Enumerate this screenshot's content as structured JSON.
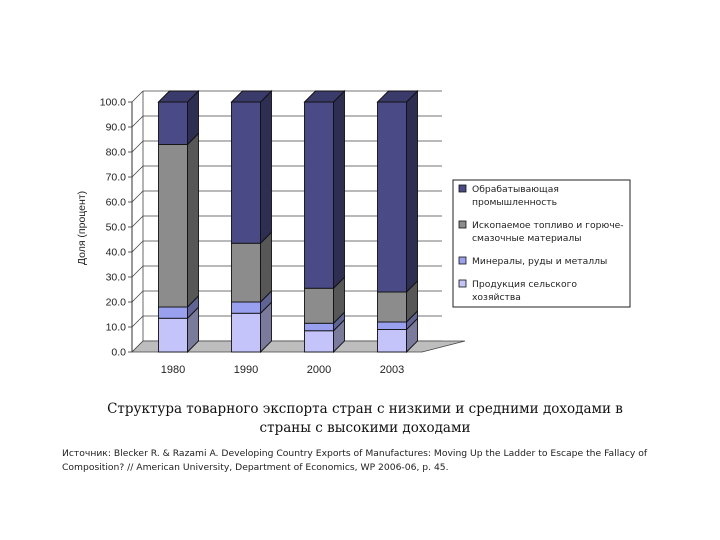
{
  "chart_data": {
    "type": "bar",
    "stacked": true,
    "three_d": true,
    "categories": [
      "1980",
      "1990",
      "2000",
      "2003"
    ],
    "ylabel": "Доля (процент)",
    "ylim": [
      0,
      100
    ],
    "y_ticks": [
      "0.0",
      "10.0",
      "20.0",
      "30.0",
      "40.0",
      "50.0",
      "60.0",
      "70.0",
      "80.0",
      "90.0",
      "100.0"
    ],
    "grid": true,
    "legend_position": "right",
    "series": [
      {
        "name": "Продукция сельского хозяйства",
        "legend_lines": [
          "Продукция сельского",
          "хозяйства"
        ],
        "color": "#c4c4fb",
        "values": [
          13.5,
          15.5,
          8.5,
          9.0
        ]
      },
      {
        "name": "Минералы, руды и металлы",
        "legend_lines": [
          "Минералы, руды и металлы"
        ],
        "color": "#9aa0f0",
        "values": [
          4.5,
          4.5,
          3.0,
          3.0
        ]
      },
      {
        "name": "Ископаемое топливо и горюче-смазочные материалы",
        "legend_lines": [
          "Ископаемое топливо и горюче-",
          "смазочные материалы"
        ],
        "color": "#8c8c8c",
        "values": [
          65.0,
          23.5,
          14.0,
          12.0
        ]
      },
      {
        "name": "Обрабатывающая промышленность",
        "legend_lines": [
          "Обрабатывающая",
          "промышленность"
        ],
        "color": "#4a4a86",
        "values": [
          17.0,
          56.5,
          74.5,
          76.0
        ]
      }
    ],
    "legend_order": [
      3,
      2,
      1,
      0
    ]
  },
  "caption": "Структура товарного экспорта стран с низкими и средними доходами в страны с высокими доходами",
  "source_lines": [
    "Источник: Blecker R. & Razami A. Developing Country Exports of Manufactures: Moving Up the Ladder to Escape the Fallacy of",
    "Composition? // American University, Department of Economics, WP 2006-06, p. 45."
  ]
}
